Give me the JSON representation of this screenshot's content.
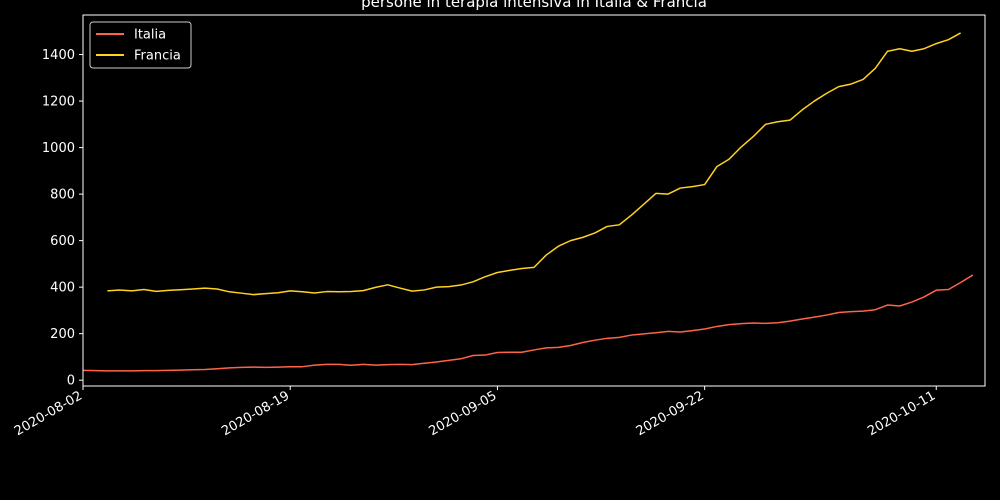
{
  "chart_data": {
    "type": "line",
    "title": "persone in terapia intensiva in Italia & Francia",
    "xlabel": "",
    "ylabel": "",
    "grid": false,
    "legend_position": "top-left",
    "xlim": [
      "2020-08-02",
      "2020-10-15"
    ],
    "ylim": [
      -25,
      1570
    ],
    "x_ticks": [
      "2020-08-02",
      "2020-08-19",
      "2020-09-05",
      "2020-09-22",
      "2020-10-11"
    ],
    "y_ticks": [
      0,
      200,
      400,
      600,
      800,
      1000,
      1200,
      1400
    ],
    "series": [
      {
        "name": "Italia",
        "color": "#ff6347",
        "x_start": "2020-08-02",
        "values": [
          42,
          41,
          40,
          40,
          40,
          41,
          41,
          42,
          43,
          45,
          46,
          49,
          53,
          55,
          56,
          55,
          56,
          58,
          58,
          65,
          68,
          68,
          64,
          68,
          65,
          67,
          68,
          67,
          73,
          78,
          85,
          92,
          106,
          108,
          119,
          120,
          120,
          130,
          139,
          141,
          149,
          162,
          172,
          180,
          184,
          194,
          199,
          204,
          210,
          207,
          213,
          220,
          231,
          239,
          243,
          246,
          244,
          247,
          254,
          263,
          271,
          280,
          291,
          295,
          297,
          303,
          323,
          319,
          336,
          358,
          387,
          390,
          420,
          452
        ]
      },
      {
        "name": "Francia",
        "color": "#ffd21f",
        "x_start": "2020-08-04",
        "values": [
          384,
          388,
          384,
          390,
          382,
          386,
          389,
          392,
          396,
          392,
          380,
          374,
          368,
          372,
          376,
          384,
          380,
          375,
          381,
          380,
          381,
          385,
          399,
          410,
          396,
          383,
          388,
          400,
          402,
          409,
          423,
          445,
          463,
          472,
          480,
          485,
          538,
          576,
          600,
          614,
          633,
          661,
          668,
          710,
          756,
          803,
          800,
          826,
          832,
          841,
          918,
          950,
          1003,
          1048,
          1100,
          1111,
          1118,
          1162,
          1200,
          1233,
          1262,
          1273,
          1293,
          1341,
          1414,
          1425,
          1414,
          1425,
          1447,
          1464,
          1493
        ]
      }
    ]
  }
}
